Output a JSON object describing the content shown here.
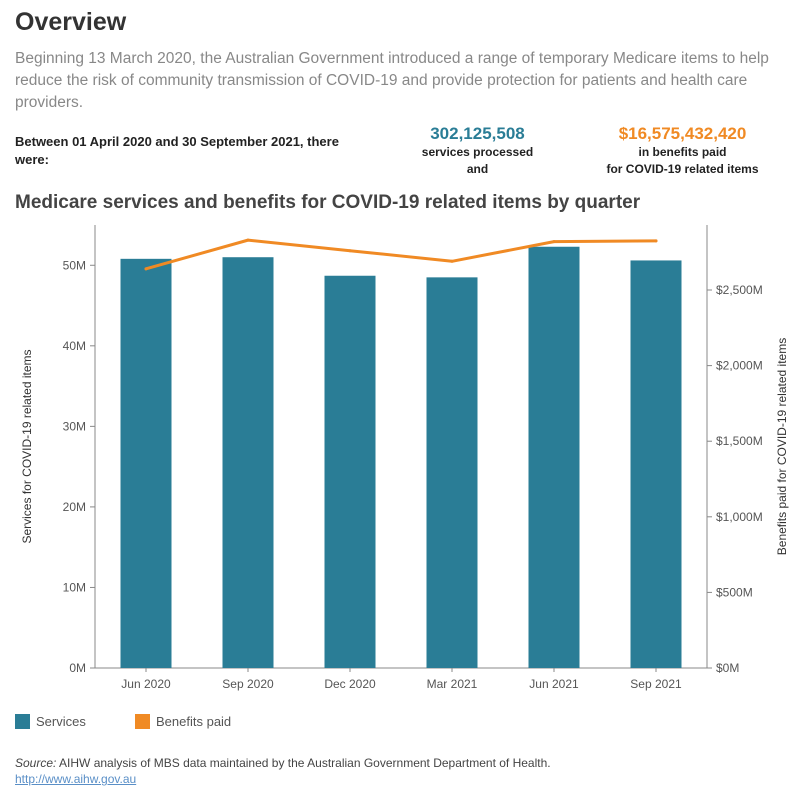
{
  "header": {
    "title": "Overview",
    "intro": "Beginning 13 March 2020, the Australian Government introduced a range of temporary Medicare items to help reduce the risk of community transmission of COVID-19 and provide protection for patients and health care providers."
  },
  "summary": {
    "between_text": "Between 01 April 2020 and 30 September 2021, there were:",
    "services_value": "302,125,508",
    "services_label_1": "services processed",
    "services_label_2": "and",
    "benefits_value": "$16,575,432,420",
    "benefits_label_1": "in benefits paid",
    "benefits_label_2": "for COVID-19 related items"
  },
  "colors": {
    "services": "#2a7d96",
    "benefits": "#f08a24",
    "axis": "#888888"
  },
  "chart_data": {
    "type": "bar",
    "title": "Medicare services and benefits for COVID-19 related items by quarter",
    "categories": [
      "Jun 2020",
      "Sep 2020",
      "Dec 2020",
      "Mar 2021",
      "Jun 2021",
      "Sep 2021"
    ],
    "series": [
      {
        "name": "Services",
        "type": "bar",
        "axis": "left",
        "values": [
          50.8,
          51.0,
          48.7,
          48.5,
          52.3,
          50.6
        ]
      },
      {
        "name": "Benefits paid",
        "type": "line",
        "axis": "right",
        "values": [
          2640,
          2830,
          2760,
          2690,
          2820,
          2825
        ]
      }
    ],
    "ylabel": "Services for COVID-19 related items",
    "ylabel_right": "Benefits paid for COVID-19 related items",
    "ylim": [
      0,
      55
    ],
    "ylim_right": [
      0,
      2930
    ],
    "yticks": [
      0,
      10,
      20,
      30,
      40,
      50
    ],
    "ytick_labels": [
      "0M",
      "10M",
      "20M",
      "30M",
      "40M",
      "50M"
    ],
    "yticks_right": [
      0,
      500,
      1000,
      1500,
      2000,
      2500
    ],
    "ytick_labels_right": [
      "$0M",
      "$500M",
      "$1,000M",
      "$1,500M",
      "$2,000M",
      "$2,500M"
    ],
    "grid": false,
    "legend": "bottom-left"
  },
  "legend": {
    "services": "Services",
    "benefits": "Benefits paid"
  },
  "source": {
    "label": "Source:",
    "text": " AIHW analysis of MBS data maintained by the Australian Government Department of Health.",
    "link": "http://www.aihw.gov.au"
  }
}
